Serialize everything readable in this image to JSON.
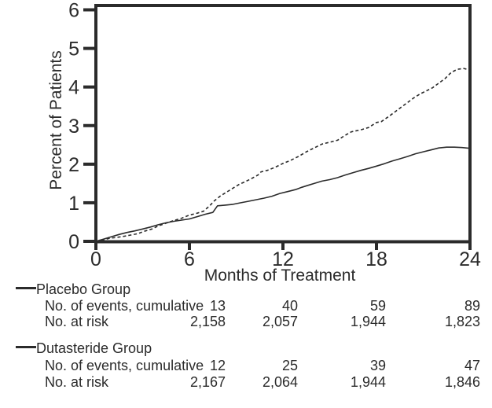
{
  "chart_data": {
    "type": "line",
    "title": "",
    "xlabel": "Months of Treatment",
    "ylabel": "Percent of Patients",
    "xlim": [
      0,
      24
    ],
    "ylim": [
      0,
      6
    ],
    "xticks": [
      "0",
      "6",
      "12",
      "18",
      "24"
    ],
    "yticks": [
      "0",
      "1",
      "2",
      "3",
      "4",
      "5",
      "6"
    ],
    "grid": false,
    "legend_position": "below-left",
    "series": [
      {
        "name": "Placebo Group",
        "style": "dashed",
        "color": "#2b2b2b",
        "points": [
          [
            0,
            0
          ],
          [
            0.4,
            0.03
          ],
          [
            0.9,
            0.08
          ],
          [
            1.3,
            0.1
          ],
          [
            1.8,
            0.13
          ],
          [
            2.2,
            0.16
          ],
          [
            2.7,
            0.2
          ],
          [
            3.1,
            0.26
          ],
          [
            3.6,
            0.32
          ],
          [
            4,
            0.4
          ],
          [
            4.5,
            0.47
          ],
          [
            5,
            0.54
          ],
          [
            5.5,
            0.6
          ],
          [
            6,
            0.68
          ],
          [
            6.5,
            0.73
          ],
          [
            6.9,
            0.78
          ],
          [
            7.3,
            0.92
          ],
          [
            7.6,
            1.05
          ],
          [
            8,
            1.18
          ],
          [
            8.4,
            1.28
          ],
          [
            8.8,
            1.38
          ],
          [
            9.2,
            1.48
          ],
          [
            9.6,
            1.55
          ],
          [
            10,
            1.63
          ],
          [
            10.4,
            1.72
          ],
          [
            10.6,
            1.8
          ],
          [
            11,
            1.84
          ],
          [
            11.5,
            1.92
          ],
          [
            12,
            2.02
          ],
          [
            12.5,
            2.1
          ],
          [
            13,
            2.2
          ],
          [
            13.5,
            2.32
          ],
          [
            14,
            2.42
          ],
          [
            14.5,
            2.52
          ],
          [
            15,
            2.57
          ],
          [
            15.5,
            2.62
          ],
          [
            16,
            2.75
          ],
          [
            16.4,
            2.84
          ],
          [
            17,
            2.89
          ],
          [
            17.5,
            2.95
          ],
          [
            18,
            3.08
          ],
          [
            18.3,
            3.1
          ],
          [
            18.8,
            3.24
          ],
          [
            19.2,
            3.36
          ],
          [
            19.6,
            3.48
          ],
          [
            20,
            3.6
          ],
          [
            20.4,
            3.72
          ],
          [
            20.8,
            3.82
          ],
          [
            21.2,
            3.9
          ],
          [
            21.6,
            3.98
          ],
          [
            22,
            4.1
          ],
          [
            22.4,
            4.22
          ],
          [
            22.8,
            4.38
          ],
          [
            23.2,
            4.46
          ],
          [
            23.6,
            4.48
          ],
          [
            24,
            4.44
          ]
        ]
      },
      {
        "name": "Dutasteride Group",
        "style": "solid",
        "color": "#2b2b2b",
        "points": [
          [
            0,
            0
          ],
          [
            0.5,
            0.06
          ],
          [
            1,
            0.12
          ],
          [
            1.5,
            0.18
          ],
          [
            2,
            0.23
          ],
          [
            2.5,
            0.27
          ],
          [
            3,
            0.32
          ],
          [
            3.5,
            0.37
          ],
          [
            4,
            0.43
          ],
          [
            4.5,
            0.48
          ],
          [
            5,
            0.52
          ],
          [
            5.5,
            0.55
          ],
          [
            6,
            0.58
          ],
          [
            6.5,
            0.64
          ],
          [
            7,
            0.7
          ],
          [
            7.5,
            0.75
          ],
          [
            7.8,
            0.92
          ],
          [
            8.3,
            0.94
          ],
          [
            8.8,
            0.96
          ],
          [
            9.3,
            1.0
          ],
          [
            9.8,
            1.04
          ],
          [
            10.3,
            1.08
          ],
          [
            10.8,
            1.12
          ],
          [
            11.3,
            1.17
          ],
          [
            11.8,
            1.24
          ],
          [
            12.3,
            1.29
          ],
          [
            12.8,
            1.34
          ],
          [
            13.2,
            1.4
          ],
          [
            13.6,
            1.45
          ],
          [
            14,
            1.5
          ],
          [
            14.5,
            1.56
          ],
          [
            15,
            1.6
          ],
          [
            15.5,
            1.65
          ],
          [
            16,
            1.72
          ],
          [
            16.5,
            1.78
          ],
          [
            17,
            1.84
          ],
          [
            17.5,
            1.89
          ],
          [
            18,
            1.95
          ],
          [
            18.5,
            2.01
          ],
          [
            19,
            2.08
          ],
          [
            19.5,
            2.14
          ],
          [
            20,
            2.2
          ],
          [
            20.5,
            2.27
          ],
          [
            21,
            2.32
          ],
          [
            21.5,
            2.37
          ],
          [
            22,
            2.42
          ],
          [
            22.5,
            2.44
          ],
          [
            23,
            2.44
          ],
          [
            23.5,
            2.43
          ],
          [
            24,
            2.41
          ]
        ]
      }
    ]
  },
  "table": {
    "groups": [
      {
        "name": "Placebo Group",
        "events_label": "No. of events, cumulative",
        "risk_label": "No. at risk",
        "events": [
          "13",
          "40",
          "59",
          "89"
        ],
        "at_risk": [
          "2,158",
          "2,057",
          "1,944",
          "1,823"
        ]
      },
      {
        "name": "Dutasteride Group",
        "events_label": "No. of events, cumulative",
        "risk_label": "No. at risk",
        "events": [
          "12",
          "25",
          "39",
          "47"
        ],
        "at_risk": [
          "2,167",
          "2,064",
          "1,944",
          "1,846"
        ]
      }
    ]
  }
}
